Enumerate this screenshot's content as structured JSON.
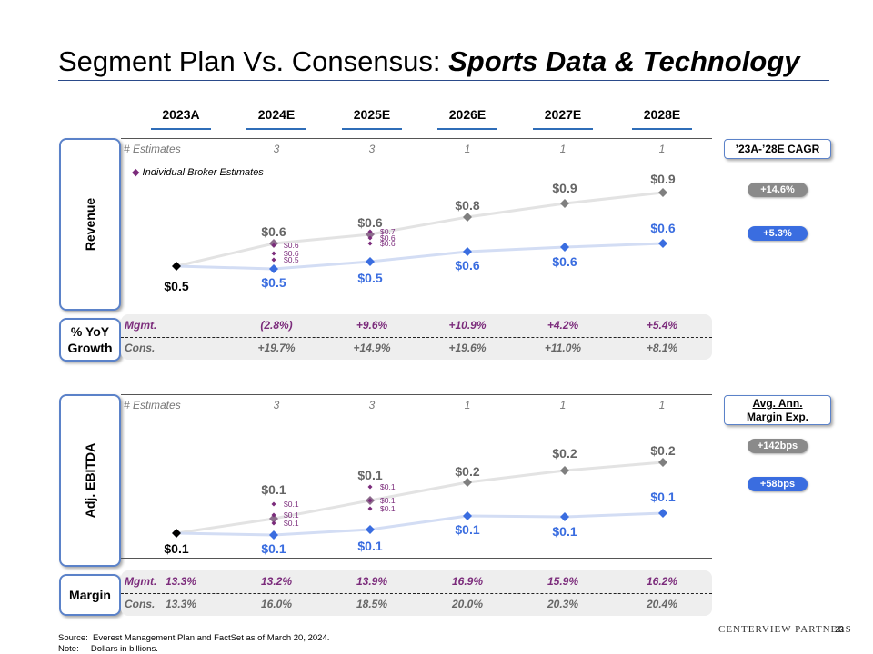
{
  "title": {
    "plain": "Segment Plan Vs. Consensus: ",
    "emph": "Sports Data & Technology"
  },
  "years": [
    "2023A",
    "2024E",
    "2025E",
    "2026E",
    "2027E",
    "2028E"
  ],
  "revenue": {
    "side_label": "Revenue",
    "estimates_label": "# Estimates",
    "estimates": [
      "3",
      "3",
      "1",
      "1",
      "1"
    ],
    "legend_marker": "◆",
    "legend": "Individual Broker Estimates",
    "cagr_box": "’23A-’28E CAGR",
    "cagr_cons": "+14.6%",
    "cagr_mgmt": "+5.3%"
  },
  "growth": {
    "side_label": "% YoY Growth",
    "mgmt_label": "Mgmt.",
    "mgmt": [
      "(2.8%)",
      "+9.6%",
      "+10.9%",
      "+4.2%",
      "+5.4%"
    ],
    "cons_label": "Cons.",
    "cons": [
      "+19.7%",
      "+14.9%",
      "+19.6%",
      "+11.0%",
      "+8.1%"
    ]
  },
  "ebitda": {
    "side_label": "Adj. EBITDA",
    "estimates_label": "# Estimates",
    "estimates": [
      "3",
      "3",
      "1",
      "1",
      "1"
    ],
    "margin_box_line1": "Avg. Ann.",
    "margin_box_line2": "Margin Exp.",
    "margin_cons": "+142bps",
    "margin_mgmt": "+58bps"
  },
  "margin": {
    "side_label": "Margin",
    "mgmt_label": "Mgmt.",
    "mgmt": [
      "13.3%",
      "13.2%",
      "13.9%",
      "16.9%",
      "15.9%",
      "16.2%"
    ],
    "cons_label": "Cons.",
    "cons": [
      "13.3%",
      "16.0%",
      "18.5%",
      "20.0%",
      "20.3%",
      "20.4%"
    ]
  },
  "footer": {
    "source_label": "Source:",
    "source": "Everest Management Plan and FactSet as of March 20, 2024.",
    "note_label": "Note:",
    "note": "Dollars in billions.",
    "logo": "CENTERVIEW PARTNERS",
    "page": "23"
  },
  "colors": {
    "consensus_line": "#e3e3e3",
    "consensus_marker": "#7f7f7f",
    "mgmt_line": "#d3ddf4",
    "mgmt_marker": "#3a6de0",
    "actual_marker": "#000000",
    "broker_marker": "#7b2b7b"
  },
  "chart_data": [
    {
      "type": "line",
      "name": "Revenue",
      "categories": [
        "2023A",
        "2024E",
        "2025E",
        "2026E",
        "2027E",
        "2028E"
      ],
      "series": [
        {
          "name": "Consensus",
          "values": [
            0.5,
            0.6,
            0.6,
            0.8,
            0.9,
            0.9
          ],
          "labels": [
            "$0.5",
            "$0.6",
            "$0.6",
            "$0.8",
            "$0.9",
            "$0.9"
          ]
        },
        {
          "name": "Mgmt.",
          "values": [
            0.5,
            0.5,
            0.5,
            0.6,
            0.6,
            0.6
          ],
          "labels": [
            "$0.5",
            "$0.5",
            "$0.5",
            "$0.6",
            "$0.6",
            "$0.6"
          ]
        }
      ],
      "broker_estimates": [
        {
          "category": "2024E",
          "values": [
            0.6,
            0.6,
            0.5
          ],
          "labels": [
            "$0.6",
            "$0.6",
            "$0.5"
          ]
        },
        {
          "category": "2025E",
          "values": [
            0.7,
            0.6,
            0.6
          ],
          "labels": [
            "$0.7",
            "$0.6",
            "$0.6"
          ]
        }
      ]
    },
    {
      "type": "line",
      "name": "Adj. EBITDA",
      "categories": [
        "2023A",
        "2024E",
        "2025E",
        "2026E",
        "2027E",
        "2028E"
      ],
      "series": [
        {
          "name": "Consensus",
          "values": [
            0.1,
            0.1,
            0.1,
            0.2,
            0.2,
            0.2
          ],
          "labels": [
            "$0.1",
            "$0.1",
            "$0.1",
            "$0.2",
            "$0.2",
            "$0.2"
          ]
        },
        {
          "name": "Mgmt.",
          "values": [
            0.1,
            0.1,
            0.1,
            0.1,
            0.1,
            0.1
          ],
          "labels": [
            "$0.1",
            "$0.1",
            "$0.1",
            "$0.1",
            "$0.1",
            "$0.1"
          ]
        }
      ],
      "broker_estimates": [
        {
          "category": "2024E",
          "values": [
            0.1,
            0.1,
            0.1
          ],
          "labels": [
            "$0.1",
            "$0.1",
            "$0.1"
          ]
        },
        {
          "category": "2025E",
          "values": [
            0.1,
            0.1,
            0.1
          ],
          "labels": [
            "$0.1",
            "$0.1",
            "$0.1"
          ]
        }
      ]
    }
  ]
}
